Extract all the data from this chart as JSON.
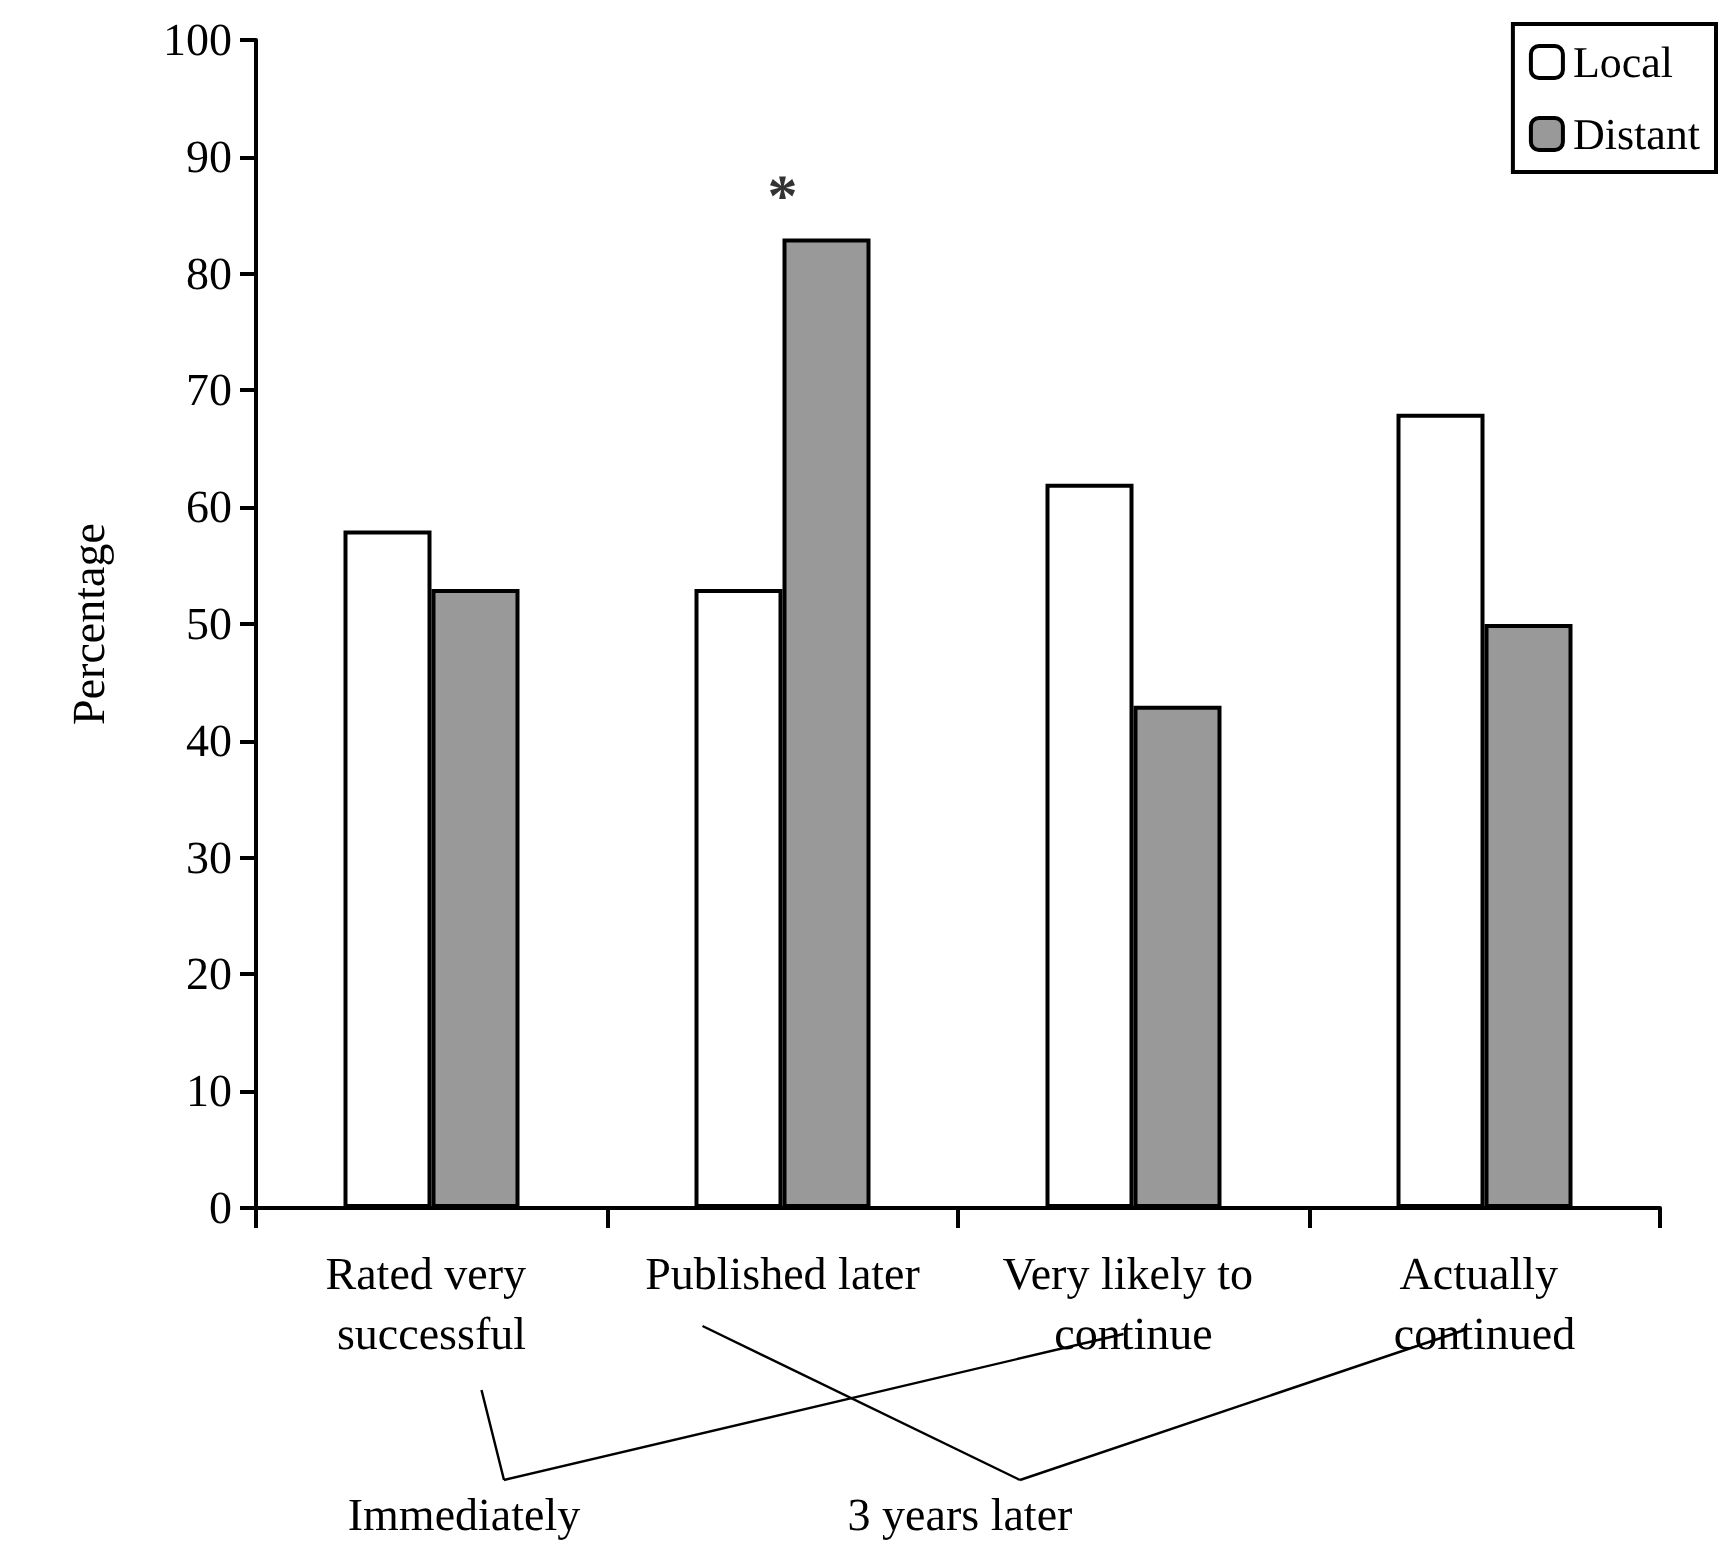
{
  "chart_data": {
    "type": "bar",
    "ylabel": "Percentage",
    "categories": [
      "Rated very successful",
      "Published later",
      "Very likely to continue",
      "Actually continued"
    ],
    "series": [
      {
        "name": "Local",
        "color": "#ffffff",
        "values": [
          58,
          53,
          62,
          68
        ]
      },
      {
        "name": "Distant",
        "color": "#999999",
        "values": [
          53,
          83,
          43,
          50
        ]
      }
    ],
    "ylim": [
      0,
      100
    ],
    "yticks": [
      0,
      10,
      20,
      30,
      40,
      50,
      60,
      70,
      80,
      90,
      100
    ],
    "grid": false,
    "legend": "top right",
    "annotations": [
      {
        "text": "*",
        "x": "Published later",
        "y": 83
      },
      "Immediately",
      "3 years later"
    ]
  }
}
